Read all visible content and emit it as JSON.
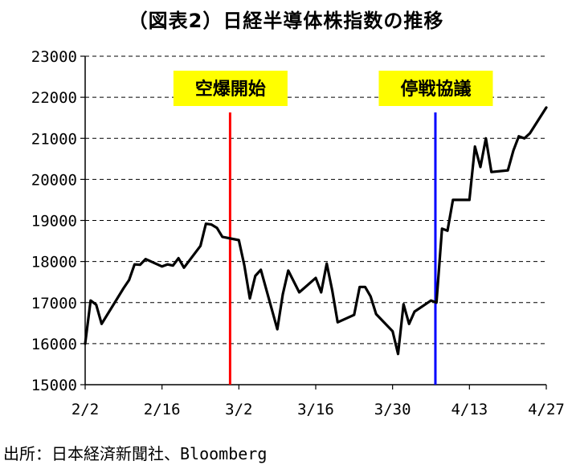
{
  "title": "（図表2）日経半導体株指数の推移",
  "source": "出所：日本経済新聞社、Bloomberg",
  "colors": {
    "series": "#000000",
    "event1": "#ff0000",
    "event2": "#0000ff",
    "label_bg": "#ffff00",
    "grid": "#000000"
  },
  "chart_data": {
    "type": "line",
    "ylim": [
      15000,
      23000
    ],
    "yticks": [
      15000,
      16000,
      17000,
      18000,
      19000,
      20000,
      21000,
      22000,
      23000
    ],
    "xticks": [
      "2/2",
      "2/16",
      "3/2",
      "3/16",
      "3/30",
      "4/13",
      "4/27"
    ],
    "x_start": "2/2",
    "x_end": "4/27",
    "grid": "horizontal-dashed",
    "events": [
      {
        "label": "空爆開始",
        "x": 26.4
      },
      {
        "label": "停戦協議",
        "x": 63.8
      }
    ],
    "series": [
      {
        "points": [
          [
            0,
            16000
          ],
          [
            1,
            17050
          ],
          [
            2,
            16950
          ],
          [
            3,
            16480
          ],
          [
            7,
            17350
          ],
          [
            8,
            17550
          ],
          [
            9,
            17930
          ],
          [
            10,
            17920
          ],
          [
            11,
            18060
          ],
          [
            14,
            17880
          ],
          [
            15,
            17930
          ],
          [
            16,
            17900
          ],
          [
            17,
            18080
          ],
          [
            18,
            17850
          ],
          [
            21,
            18380
          ],
          [
            22,
            18920
          ],
          [
            23,
            18900
          ],
          [
            24,
            18820
          ],
          [
            25,
            18600
          ],
          [
            28,
            18520
          ],
          [
            29,
            17900
          ],
          [
            30,
            17100
          ],
          [
            31,
            17650
          ],
          [
            32,
            17800
          ],
          [
            35,
            16350
          ],
          [
            36,
            17200
          ],
          [
            37,
            17780
          ],
          [
            39,
            17250
          ],
          [
            42,
            17600
          ],
          [
            43,
            17250
          ],
          [
            44,
            17950
          ],
          [
            45,
            17300
          ],
          [
            46,
            16520
          ],
          [
            49,
            16700
          ],
          [
            50,
            17380
          ],
          [
            51,
            17380
          ],
          [
            52,
            17150
          ],
          [
            53,
            16720
          ],
          [
            56,
            16300
          ],
          [
            57,
            15750
          ],
          [
            58,
            16960
          ],
          [
            59,
            16480
          ],
          [
            60,
            16780
          ],
          [
            63,
            17050
          ],
          [
            64,
            17000
          ],
          [
            65,
            18800
          ],
          [
            66,
            18750
          ],
          [
            67,
            19500
          ],
          [
            70,
            19500
          ],
          [
            71,
            20800
          ],
          [
            72,
            20300
          ],
          [
            73,
            21000
          ],
          [
            74,
            20180
          ],
          [
            77,
            20220
          ],
          [
            78,
            20700
          ],
          [
            79,
            21050
          ],
          [
            80,
            21000
          ],
          [
            81,
            21120
          ],
          [
            84,
            21750
          ]
        ]
      }
    ]
  }
}
